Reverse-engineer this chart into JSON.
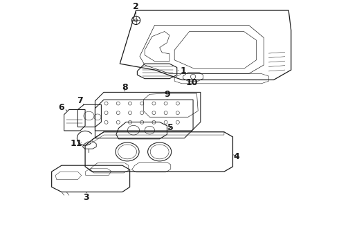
{
  "background_color": "#ffffff",
  "line_color": "#1a1a1a",
  "figsize": [
    4.9,
    3.6
  ],
  "dpi": 100,
  "label_fontsize": 9
}
